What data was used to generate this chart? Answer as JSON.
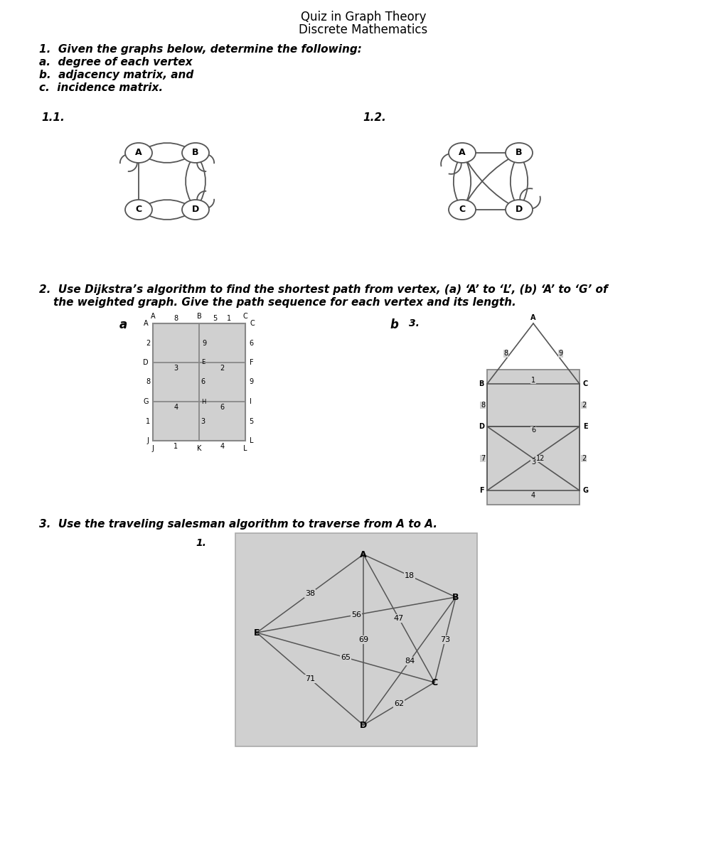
{
  "title_line1": "Quiz in Graph Theory",
  "title_line2": "Discrete Mathematics",
  "q1_lines": [
    "1.  Given the graphs below, determine the following:",
    "a.  degree of each vertex",
    "b.  adjacency matrix, and",
    "c.  incidence matrix."
  ],
  "bg_color": "#ffffff",
  "graph_bg": "#d8d8d8",
  "node_fill": "#ffffff",
  "node_edge": "#555555",
  "edge_col": "#555555",
  "grid_bg": "#d0d0d0",
  "tsp_bg": "#d0d0d0",
  "weights_2a": {
    "AB": "8",
    "BC": "5",
    "AC_top": "1",
    "AD": "2",
    "BE": "9",
    "CF": "6",
    "DE": "3",
    "EF": "2",
    "DG": "8",
    "EH": "6",
    "FI": "9",
    "GH": "4",
    "HI": "6",
    "GJ": "1",
    "HK": "3",
    "IL": "5",
    "JK": "1",
    "KL": "4"
  },
  "tsp_edges": [
    [
      "A",
      "B",
      18
    ],
    [
      "A",
      "E",
      38
    ],
    [
      "B",
      "E",
      56
    ],
    [
      "A",
      "D",
      69
    ],
    [
      "B",
      "D",
      84
    ],
    [
      "C",
      "D",
      62
    ],
    [
      "A",
      "C",
      47
    ],
    [
      "B",
      "C",
      73
    ],
    [
      "C",
      "E",
      65
    ],
    [
      "D",
      "E",
      71
    ]
  ]
}
